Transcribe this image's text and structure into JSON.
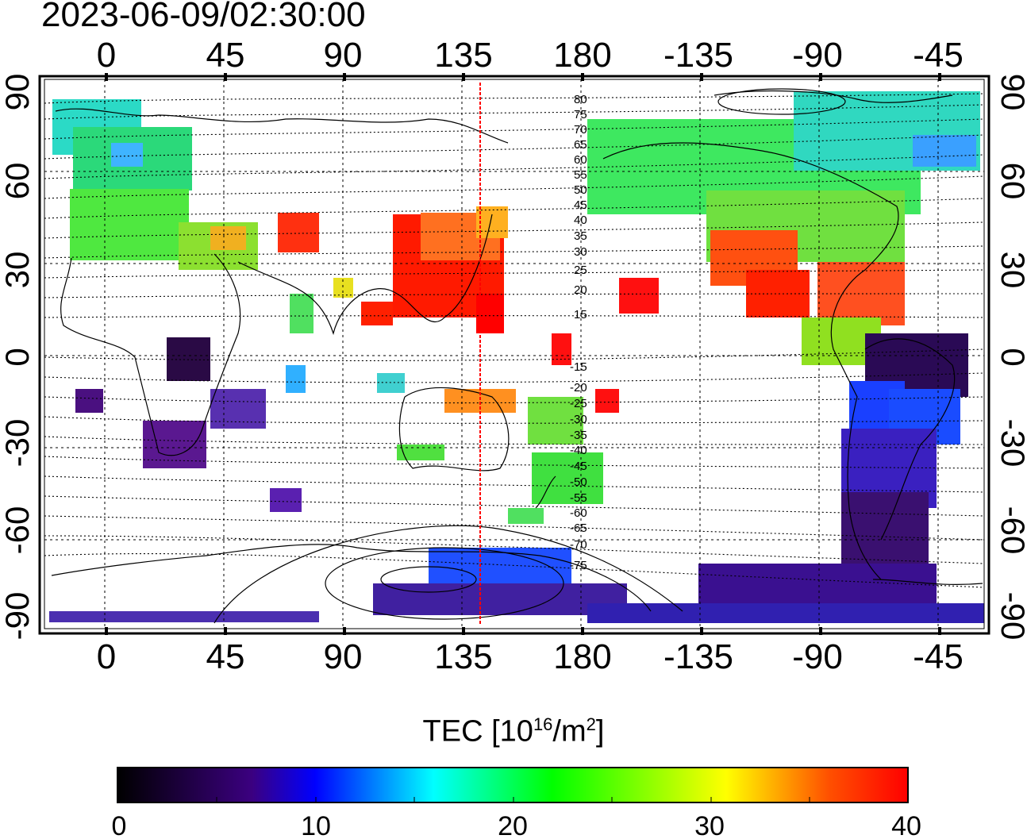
{
  "title": "2023-06-09/02:30:00",
  "map": {
    "top_lon_ticks": [
      "0",
      "45",
      "90",
      "135",
      "180",
      "-135",
      "-90",
      "-45"
    ],
    "bottom_lon_ticks": [
      "0",
      "45",
      "90",
      "135",
      "180",
      "-135",
      "-90",
      "-45"
    ],
    "left_lat_ticks": [
      "90",
      "60",
      "30",
      "0",
      "-30",
      "-60",
      "-90"
    ],
    "right_lat_ticks": [
      "90",
      "60",
      "30",
      "0",
      "-30",
      "-60",
      "-90"
    ],
    "contour_labels_north": [
      "80",
      "75",
      "70",
      "65",
      "60",
      "55",
      "50",
      "45",
      "40",
      "35",
      "30",
      "25",
      "20",
      "15"
    ],
    "contour_labels_south": [
      "-15",
      "-20",
      "-25",
      "-30",
      "-35",
      "-40",
      "-45",
      "-50",
      "-55",
      "-60",
      "-65",
      "-70",
      "-75"
    ],
    "terminator_longitude": 142,
    "marker_line_color": "#ff0000"
  },
  "colorbar": {
    "label_main": "TEC  [10",
    "label_exp1": "16",
    "label_mid": "/m",
    "label_exp2": "2",
    "label_end": "]",
    "ticks": [
      "0",
      "10",
      "20",
      "30",
      "40"
    ],
    "min": 0,
    "max": 40,
    "colors": [
      "#000000",
      "#3b0080",
      "#0000ff",
      "#00ffff",
      "#00ff00",
      "#ffff00",
      "#ff0000"
    ]
  }
}
